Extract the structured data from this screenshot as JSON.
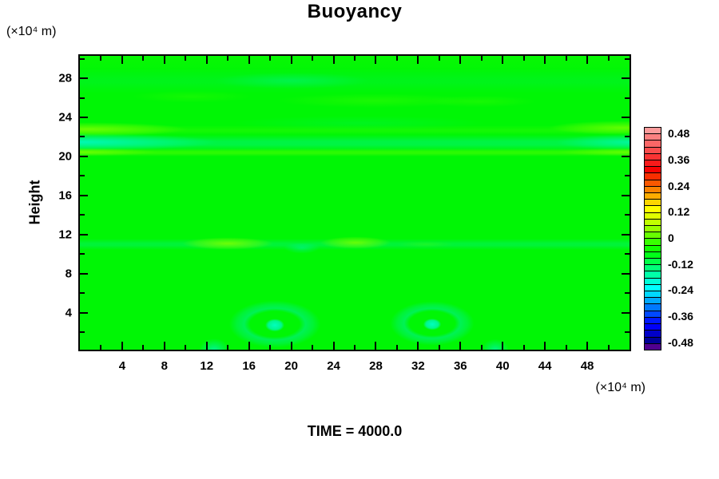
{
  "title": "Buoyancy",
  "y_axis": {
    "label": "Height",
    "unit_label": "(×10⁴ m)",
    "major_ticks": [
      4,
      8,
      12,
      16,
      20,
      24,
      28
    ],
    "minor_ticks": [
      2,
      6,
      10,
      14,
      18,
      22,
      26,
      30
    ],
    "range": [
      0.2,
      30.3
    ]
  },
  "x_axis": {
    "unit_label": "(×10⁴ m)",
    "major_ticks": [
      4,
      8,
      12,
      16,
      20,
      24,
      28,
      32,
      36,
      40,
      44,
      48
    ],
    "minor_ticks": [
      2,
      6,
      10,
      14,
      18,
      22,
      26,
      30,
      34,
      38,
      42,
      46,
      50
    ],
    "range": [
      0,
      52
    ]
  },
  "footer": {
    "time_label": "TIME = 4000.0"
  },
  "colorbar": {
    "tick_labels": [
      "0.48",
      "0.36",
      "0.24",
      "0.12",
      "0",
      "-0.12",
      "-0.24",
      "-0.36",
      "-0.48"
    ],
    "tick_values": [
      0.48,
      0.36,
      0.24,
      0.12,
      0,
      -0.12,
      -0.24,
      -0.36,
      -0.48
    ],
    "value_range": [
      -0.51,
      0.51
    ],
    "segment_colors": [
      "#FC9B9B",
      "#FB8080",
      "#FA6666",
      "#FA4C4C",
      "#F93333",
      "#F91A1A",
      "#F80202",
      "#FA2E00",
      "#FB5800",
      "#FC8200",
      "#FDAC00",
      "#FED600",
      "#FFFF00",
      "#E0FF00",
      "#C0FF00",
      "#98FF00",
      "#68FF00",
      "#38FF00",
      "#10FF00",
      "#00FF18",
      "#00FF48",
      "#00FF78",
      "#00FFA8",
      "#00FFD8",
      "#00FFFF",
      "#00D8FF",
      "#00A8FF",
      "#0078FF",
      "#0048FF",
      "#0018FF",
      "#0000F8",
      "#0000C8",
      "#000098",
      "#500090"
    ]
  },
  "colors": {
    "background": "#FFFFFF",
    "base_green": "#00F605",
    "axis": "#000000"
  },
  "chart_data": {
    "type": "heatmap",
    "title": "Buoyancy",
    "xlabel": "(×10⁴ m)",
    "ylabel": "Height (×10⁴ m)",
    "x_range": [
      0,
      52
    ],
    "y_range": [
      0,
      30
    ],
    "time": 4000.0,
    "colorbar_range": [
      -0.51,
      0.51
    ],
    "colorbar_ticks": [
      0.48,
      0.36,
      0.24,
      0.12,
      0,
      -0.12,
      -0.24,
      -0.36,
      -0.48
    ],
    "colorbar_step": 0.03,
    "background_value": -0.02,
    "grid": false,
    "legend_position": "right-colorbar",
    "features": [
      {
        "name": "upper-positive-band-left",
        "x": [
          0,
          10
        ],
        "height": 22.6,
        "value": 0.06
      },
      {
        "name": "upper-positive-band-right",
        "x": [
          44,
          52
        ],
        "height": 22.7,
        "value": 0.05
      },
      {
        "name": "upper-negative-band",
        "x": [
          0,
          52
        ],
        "height": 21.5,
        "value": -0.08,
        "note": "strongest at left and right edges"
      },
      {
        "name": "thin-positive-line",
        "x": [
          0,
          52
        ],
        "height": 20.5,
        "value": 0.05
      },
      {
        "name": "upper-teal-patch",
        "x": [
          16,
          24
        ],
        "height": 27.8,
        "value": -0.04
      },
      {
        "name": "mid-negative-band",
        "x": [
          0,
          52
        ],
        "height": 11.2,
        "value": -0.05
      },
      {
        "name": "mid-positive-lens-1",
        "x": [
          9.5,
          18.5
        ],
        "height": 11.3,
        "value": 0.06
      },
      {
        "name": "mid-positive-lens-2",
        "x": [
          22.5,
          29.5
        ],
        "height": 11.3,
        "value": 0.06
      },
      {
        "name": "vortex-1",
        "x": 18.4,
        "height": 2.7,
        "value": -0.13
      },
      {
        "name": "vortex-2",
        "x": 33.3,
        "height": 2.9,
        "value": -0.13
      },
      {
        "name": "small-negative-blob-1",
        "x": 12.8,
        "height": 0.7,
        "value": -0.09
      },
      {
        "name": "small-negative-blob-2",
        "x": 39.4,
        "height": 0.8,
        "value": -0.09
      }
    ]
  }
}
